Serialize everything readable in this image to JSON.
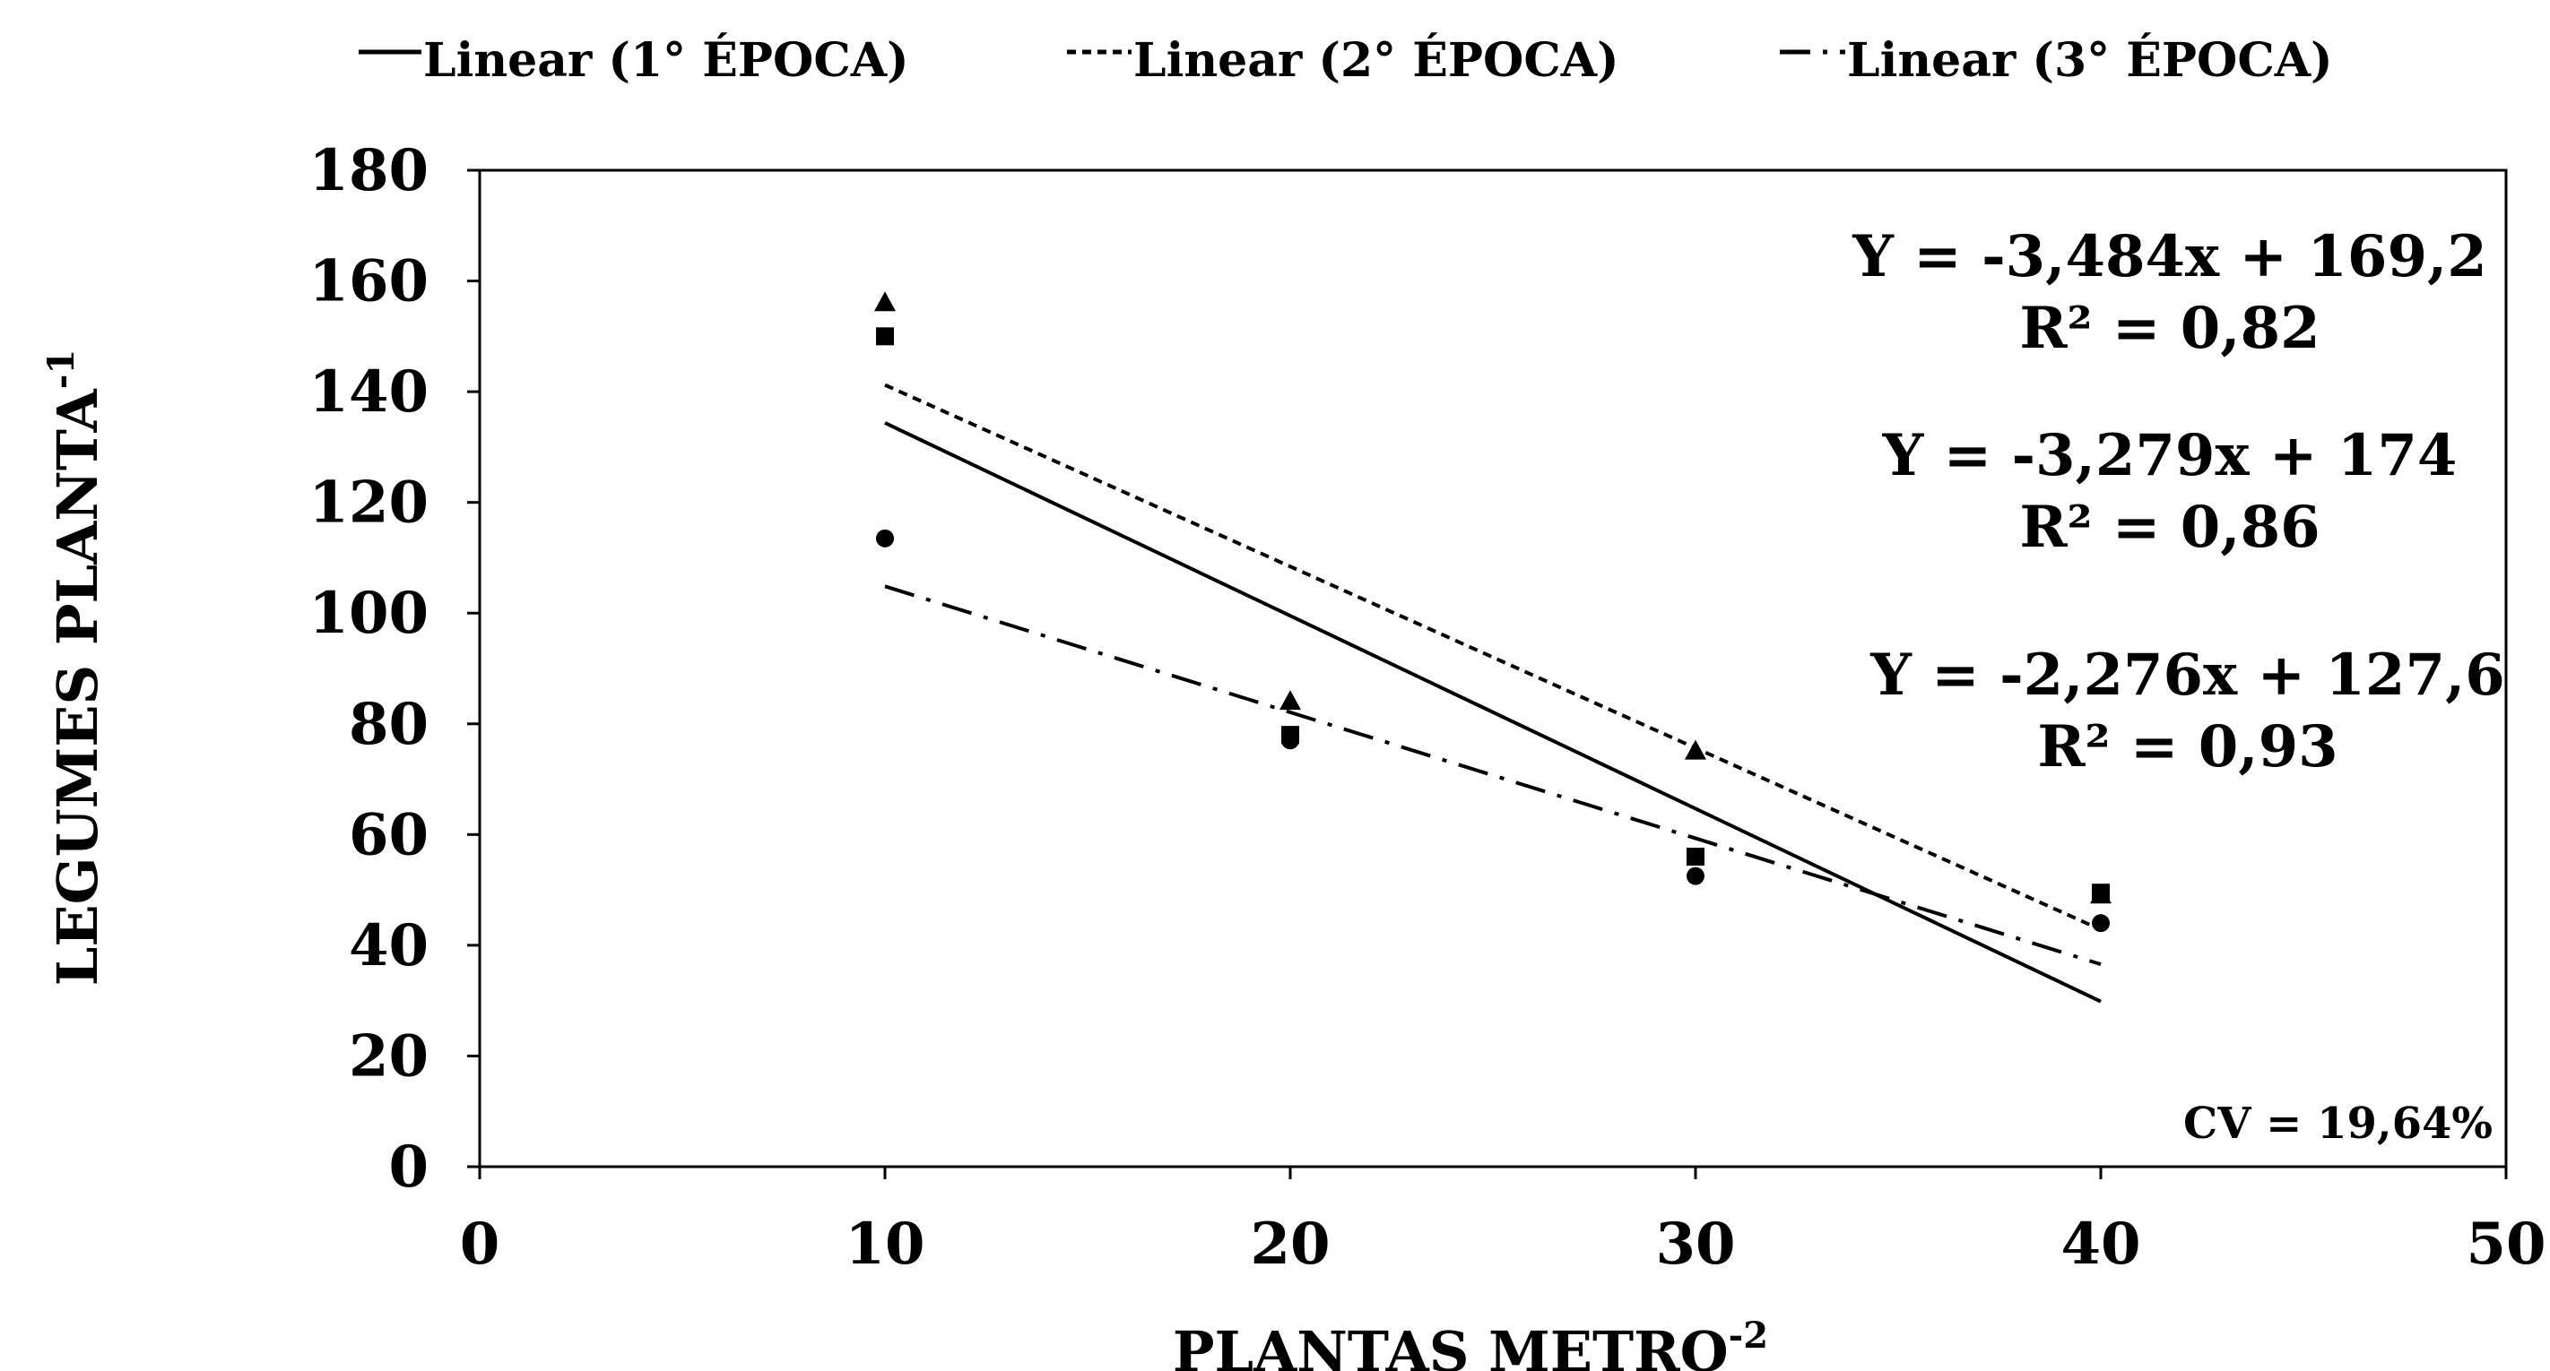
{
  "chart_data": {
    "type": "scatter",
    "xlabel": "PLANTAS METRO",
    "xlabel_sup": "-2",
    "ylabel": "LEGUMES PLANTA",
    "ylabel_sup": "-1",
    "xlim": [
      0,
      50
    ],
    "ylim": [
      0,
      180
    ],
    "x_ticks": [
      0,
      10,
      20,
      30,
      40,
      50
    ],
    "y_ticks": [
      0,
      20,
      40,
      60,
      80,
      100,
      120,
      140,
      160,
      180
    ],
    "grid": false,
    "legend_position": "top",
    "legend": [
      {
        "label": "Linear (1° ÉPOCA)",
        "style": "solid"
      },
      {
        "label": "Linear (2° ÉPOCA)",
        "style": "dotted"
      },
      {
        "label": "Linear (3° ÉPOCA)",
        "style": "dashdot"
      }
    ],
    "series": [
      {
        "marker": "square",
        "points": [
          [
            10,
            150
          ],
          [
            20,
            78
          ],
          [
            30,
            56
          ],
          [
            40,
            49.5
          ]
        ]
      },
      {
        "marker": "triangle",
        "points": [
          [
            10,
            156
          ],
          [
            20,
            84
          ],
          [
            30,
            75
          ],
          [
            40,
            49
          ]
        ]
      },
      {
        "marker": "circle",
        "points": [
          [
            10,
            113.5
          ],
          [
            20,
            77
          ],
          [
            30,
            52.5
          ],
          [
            40,
            44
          ]
        ]
      }
    ],
    "trendlines": [
      {
        "style": "solid",
        "slope": -3.484,
        "intercept": 169.2,
        "x_range": [
          10,
          40
        ]
      },
      {
        "style": "dotted",
        "slope": -3.279,
        "intercept": 174,
        "x_range": [
          10,
          40
        ]
      },
      {
        "style": "dashdot",
        "slope": -2.276,
        "intercept": 127.6,
        "x_range": [
          10,
          40
        ]
      }
    ],
    "annotations": [
      {
        "text": "Y = -3,484x + 169,2"
      },
      {
        "text": "R² = 0,82"
      },
      {
        "text": "Y = -3,279x + 174"
      },
      {
        "text": "R² = 0,86"
      },
      {
        "text": "Y = -2,276x + 127,6"
      },
      {
        "text": "R² = 0,93"
      },
      {
        "text": "CV = 19,64%"
      }
    ]
  }
}
